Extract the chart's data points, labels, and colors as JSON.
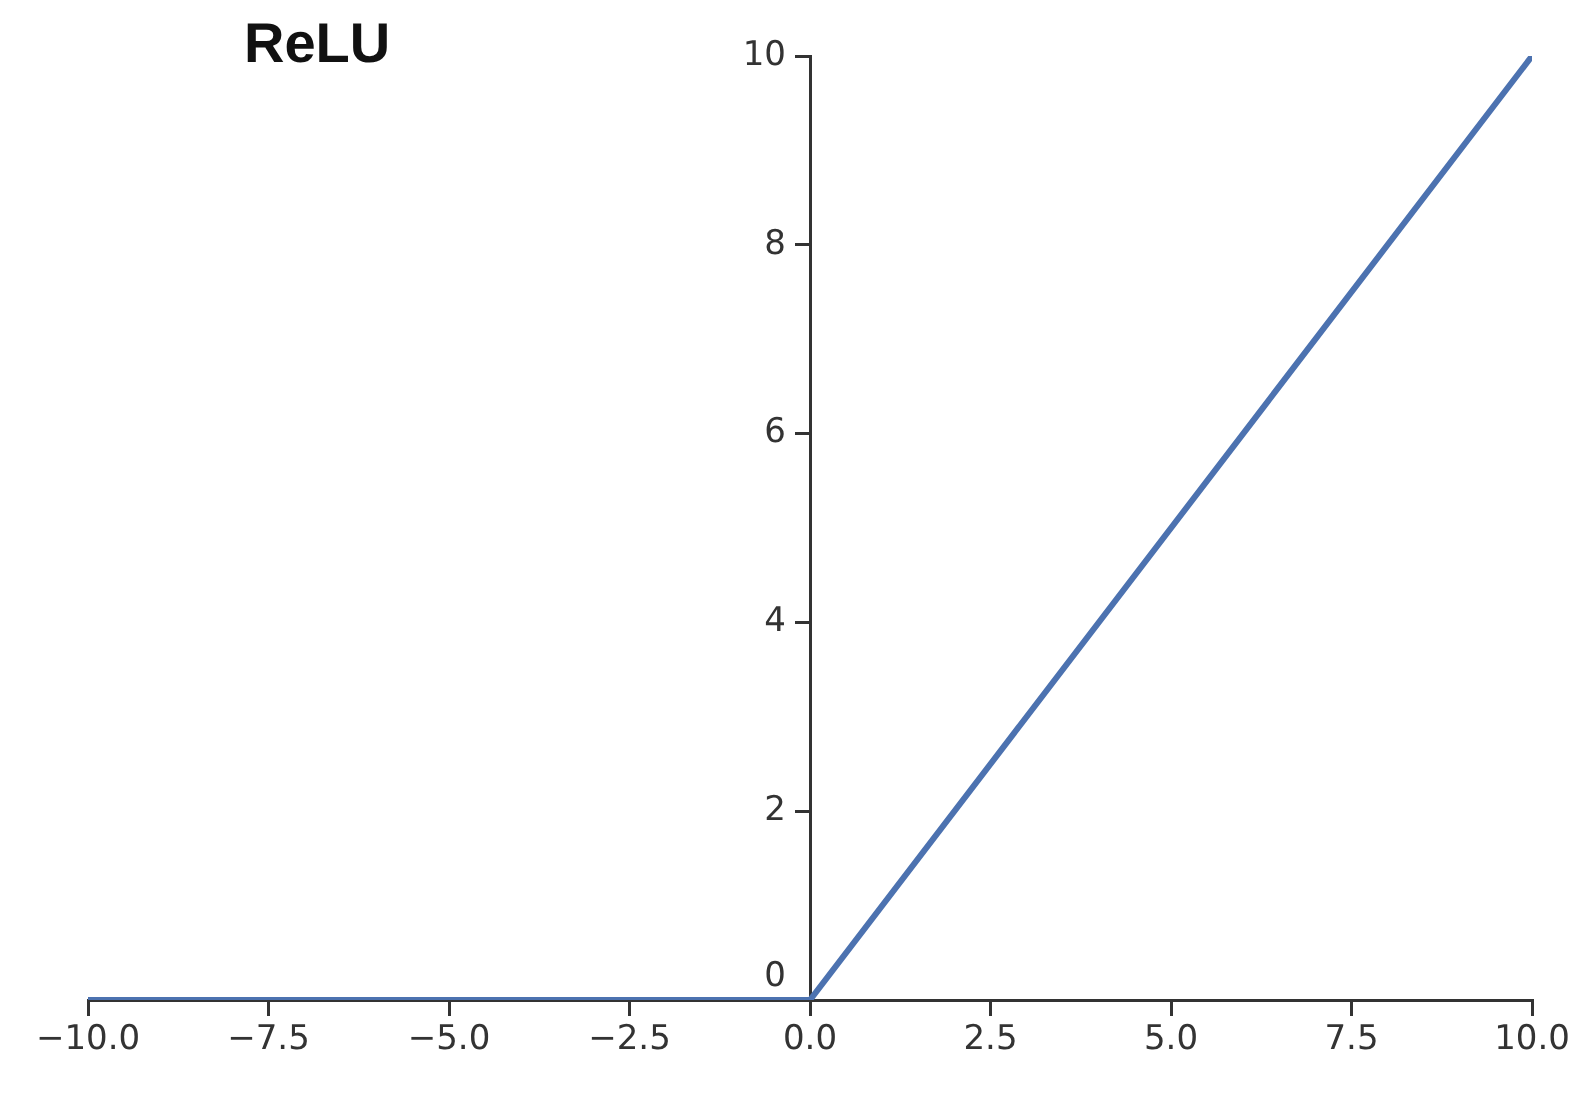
{
  "chart_data": {
    "type": "line",
    "title": "ReLU",
    "x": [
      -10,
      0,
      10
    ],
    "series": [
      {
        "color": "#4c72b0",
        "values": [
          0,
          0,
          10
        ]
      }
    ],
    "xlim": [
      -10,
      10
    ],
    "xticks": [
      {
        "value": -10,
        "label": "−10.0"
      },
      {
        "value": -7.5,
        "label": "−7.5"
      },
      {
        "value": -5,
        "label": "−5.0"
      },
      {
        "value": -2.5,
        "label": "−2.5"
      },
      {
        "value": 0,
        "label": "0.0"
      },
      {
        "value": 2.5,
        "label": "2.5"
      },
      {
        "value": 5,
        "label": "5.0"
      },
      {
        "value": 7.5,
        "label": "7.5"
      },
      {
        "value": 10,
        "label": "10.0"
      }
    ],
    "ylim": [
      0,
      10
    ],
    "yticks": [
      0,
      2,
      4,
      6,
      8,
      10
    ],
    "grid": false,
    "legend": false,
    "marker": "none",
    "line_style": "solid"
  }
}
